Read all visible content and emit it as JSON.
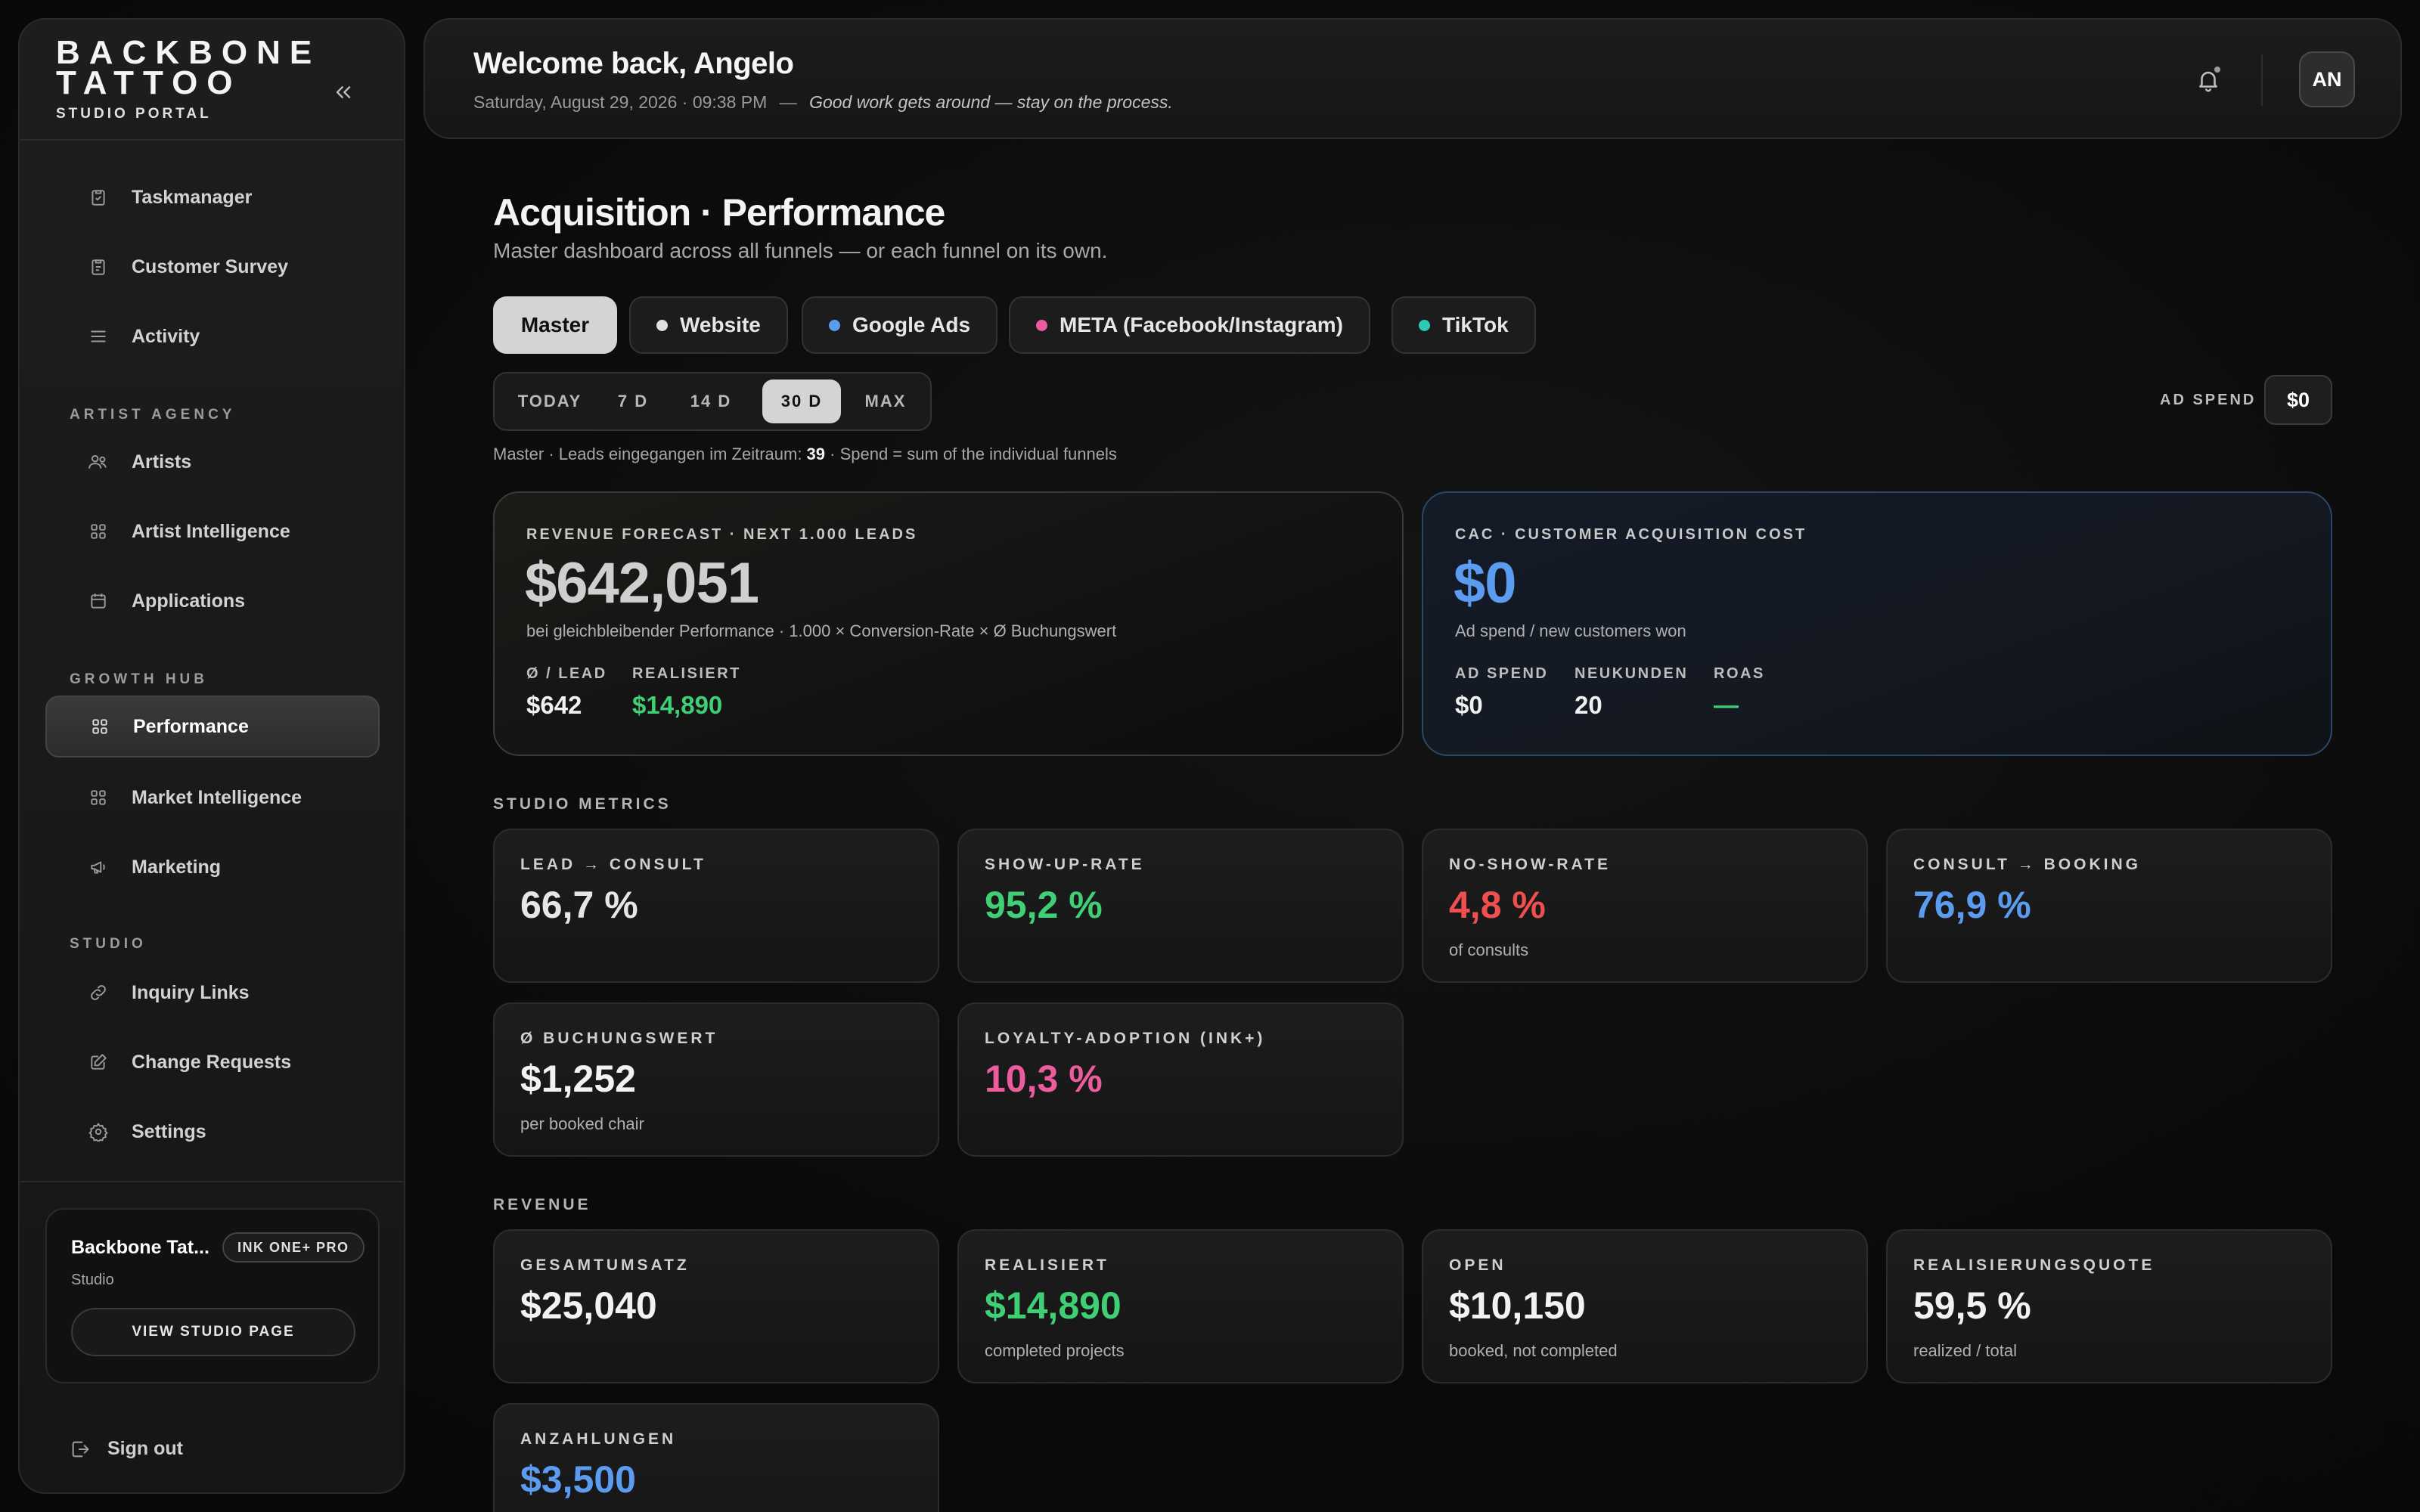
{
  "brand": {
    "line1": "BACKBONE",
    "line2": "TATTOO",
    "sub": "STUDIO PORTAL"
  },
  "nav": {
    "top": [
      {
        "label": "Taskmanager",
        "icon": "clipboard-icon"
      },
      {
        "label": "Customer Survey",
        "icon": "clipboard-icon"
      },
      {
        "label": "Activity",
        "icon": "list-icon"
      }
    ],
    "artist_agency_label": "ARTIST AGENCY",
    "artist_agency": [
      {
        "label": "Artists",
        "icon": "users-icon"
      },
      {
        "label": "Artist Intelligence",
        "icon": "grid-icon"
      },
      {
        "label": "Applications",
        "icon": "calendar-icon"
      }
    ],
    "growth_hub_label": "GROWTH HUB",
    "growth_hub": [
      {
        "label": "Performance",
        "icon": "grid-icon",
        "active": true
      },
      {
        "label": "Market Intelligence",
        "icon": "grid-icon"
      },
      {
        "label": "Marketing",
        "icon": "megaphone-icon"
      }
    ],
    "studio_label": "STUDIO",
    "studio": [
      {
        "label": "Inquiry Links",
        "icon": "link-icon"
      },
      {
        "label": "Change Requests",
        "icon": "edit-icon"
      },
      {
        "label": "Settings",
        "icon": "gear-icon"
      }
    ]
  },
  "studio_card": {
    "name": "Backbone Tat...",
    "badge": "INK ONE+ PRO",
    "type": "Studio",
    "button": "VIEW STUDIO PAGE"
  },
  "signout": "Sign out",
  "header": {
    "welcome": "Welcome back, Angelo",
    "datetime": "Saturday, August 29, 2026 · 09:38 PM",
    "separator": "—",
    "quote": "Good work gets around — stay on the process.",
    "avatar": "AN"
  },
  "page": {
    "title": "Acquisition · Performance",
    "subtitle": "Master dashboard across all funnels — or each funnel on its own."
  },
  "funnels": [
    {
      "label": "Master",
      "active": true,
      "dot": null
    },
    {
      "label": "Website",
      "dot": "#e0e0e0"
    },
    {
      "label": "Google Ads",
      "dot": "#5b9bf0"
    },
    {
      "label": "META (Facebook/Instagram)",
      "dot": "#ec5c9c"
    },
    {
      "label": "TikTok",
      "dot": "#2ec8b6"
    }
  ],
  "ranges": [
    {
      "label": "TODAY"
    },
    {
      "label": "7 D"
    },
    {
      "label": "14 D"
    },
    {
      "label": "30 D",
      "active": true
    },
    {
      "label": "MAX"
    }
  ],
  "ad_spend": {
    "label": "AD SPEND",
    "value": "$0"
  },
  "leads_note": {
    "prefix": "Master · Leads eingegangen im Zeitraum: ",
    "count": "39",
    "suffix": " · Spend = sum of the individual funnels"
  },
  "forecast": {
    "label": "REVENUE FORECAST · NEXT 1.000 LEADS",
    "value": "$642,051",
    "note": "bei gleichbleibender Performance · 1.000 × Conversion-Rate × Ø Buchungswert",
    "per_lead_label": "Ø / LEAD",
    "per_lead_value": "$642",
    "realized_label": "REALISIERT",
    "realized_value": "$14,890"
  },
  "cac": {
    "label": "CAC · CUSTOMER ACQUISITION COST",
    "value": "$0",
    "note": "Ad spend / new customers won",
    "ad_spend_label": "AD SPEND",
    "ad_spend_value": "$0",
    "new_customers_label": "NEUKUNDEN",
    "new_customers_value": "20",
    "roas_label": "ROAS",
    "roas_value": "—"
  },
  "studio_metrics": {
    "label": "STUDIO METRICS",
    "items": [
      {
        "label": "LEAD → CONSULT",
        "value": "66,7 %",
        "note": "",
        "color": "#e6e6e6"
      },
      {
        "label": "SHOW-UP-RATE",
        "value": "95,2 %",
        "note": "",
        "color": "#3fcf74"
      },
      {
        "label": "NO-SHOW-RATE",
        "value": "4,8 %",
        "note": "of consults",
        "color": "#ef4f4f"
      },
      {
        "label": "CONSULT → BOOKING",
        "value": "76,9 %",
        "note": "",
        "color": "#5b9bf0"
      },
      {
        "label": "Ø BUCHUNGSWERT",
        "value": "$1,252",
        "note": "per booked chair",
        "color": "#f2f2f2"
      },
      {
        "label": "LOYALTY-ADOPTION (INK+)",
        "value": "10,3 %",
        "note": "",
        "color": "#ec5c9c"
      }
    ]
  },
  "revenue": {
    "label": "REVENUE",
    "items": [
      {
        "label": "GESAMTUMSATZ",
        "value": "$25,040",
        "note": "",
        "color": "#f2f2f2"
      },
      {
        "label": "REALISIERT",
        "value": "$14,890",
        "note": "completed projects",
        "color": "#3fcf74"
      },
      {
        "label": "OPEN",
        "value": "$10,150",
        "note": "booked, not completed",
        "color": "#f2f2f2"
      },
      {
        "label": "REALISIERUNGSQUOTE",
        "value": "59,5 %",
        "note": "realized / total",
        "color": "#f2f2f2"
      },
      {
        "label": "ANZAHLUNGEN",
        "value": "$3,500",
        "note": "",
        "color": "#5b9bf0"
      }
    ]
  },
  "colors": {
    "green": "#3fcf74",
    "blue": "#5b9bf0",
    "red": "#ef4f4f",
    "pink": "#ec5c9c"
  }
}
